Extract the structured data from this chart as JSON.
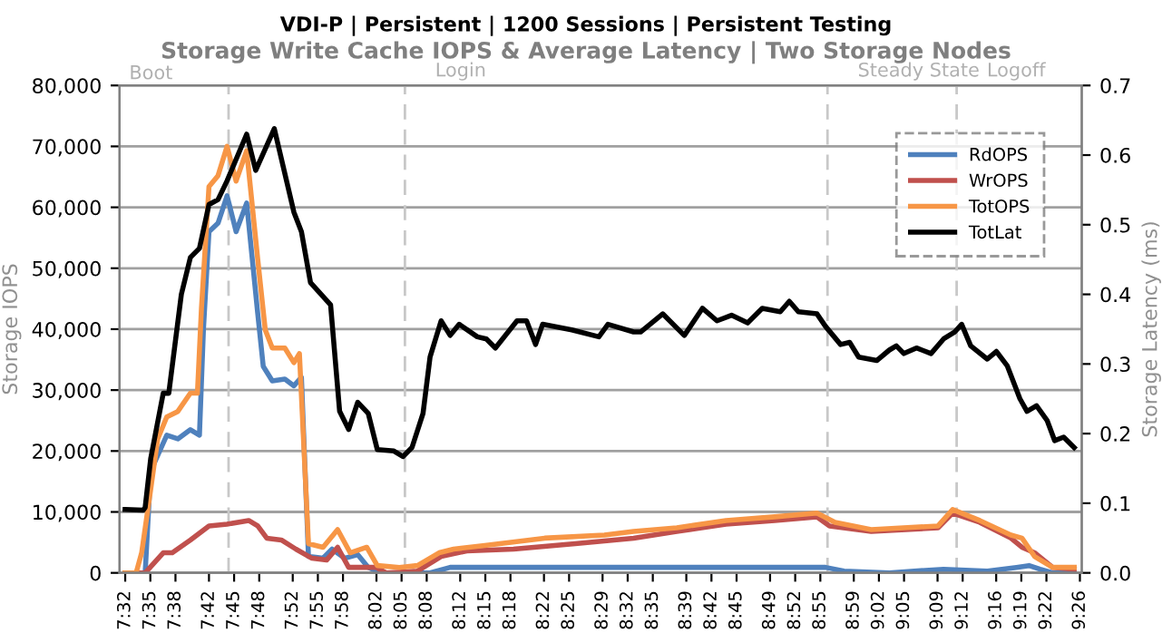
{
  "chart_data": {
    "type": "line",
    "title": "VDI-P | Persistent | 1200 Sessions | Persistent Testing",
    "subtitle": "Storage Write Cache IOPS & Average Latency | Two Storage Nodes",
    "ylabel": "Storage IOPS",
    "y2label": "Storage Latency (ms)",
    "xlim": [
      7.522,
      9.437
    ],
    "xticks": [
      {
        "value": 7.5333,
        "label": "7:32"
      },
      {
        "value": 7.5833,
        "label": "7:35"
      },
      {
        "value": 7.6333,
        "label": "7:38"
      },
      {
        "value": 7.7,
        "label": "7:42"
      },
      {
        "value": 7.75,
        "label": "7:45"
      },
      {
        "value": 7.8,
        "label": "7:48"
      },
      {
        "value": 7.8667,
        "label": "7:52"
      },
      {
        "value": 7.9167,
        "label": "7:55"
      },
      {
        "value": 7.9667,
        "label": "7:58"
      },
      {
        "value": 8.0333,
        "label": "8:02"
      },
      {
        "value": 8.0833,
        "label": "8:05"
      },
      {
        "value": 8.1333,
        "label": "8:08"
      },
      {
        "value": 8.2,
        "label": "8:12"
      },
      {
        "value": 8.25,
        "label": "8:15"
      },
      {
        "value": 8.3,
        "label": "8:18"
      },
      {
        "value": 8.3667,
        "label": "8:22"
      },
      {
        "value": 8.4167,
        "label": "8:25"
      },
      {
        "value": 8.4833,
        "label": "8:29"
      },
      {
        "value": 8.5333,
        "label": "8:32"
      },
      {
        "value": 8.5833,
        "label": "8:35"
      },
      {
        "value": 8.65,
        "label": "8:39"
      },
      {
        "value": 8.7,
        "label": "8:42"
      },
      {
        "value": 8.75,
        "label": "8:45"
      },
      {
        "value": 8.8167,
        "label": "8:49"
      },
      {
        "value": 8.8667,
        "label": "8:52"
      },
      {
        "value": 8.9167,
        "label": "8:55"
      },
      {
        "value": 8.9833,
        "label": "8:59"
      },
      {
        "value": 9.0333,
        "label": "9:02"
      },
      {
        "value": 9.0833,
        "label": "9:05"
      },
      {
        "value": 9.15,
        "label": "9:09"
      },
      {
        "value": 9.2,
        "label": "9:12"
      },
      {
        "value": 9.2667,
        "label": "9:16"
      },
      {
        "value": 9.3167,
        "label": "9:19"
      },
      {
        "value": 9.3667,
        "label": "9:22"
      },
      {
        "value": 9.4333,
        "label": "9:26"
      }
    ],
    "ylim": [
      0,
      80000
    ],
    "yticks": [
      {
        "value": 0,
        "label": "0"
      },
      {
        "value": 10000,
        "label": "10,000"
      },
      {
        "value": 20000,
        "label": "20,000"
      },
      {
        "value": 30000,
        "label": "30,000"
      },
      {
        "value": 40000,
        "label": "40,000"
      },
      {
        "value": 50000,
        "label": "50,000"
      },
      {
        "value": 60000,
        "label": "60,000"
      },
      {
        "value": 70000,
        "label": "70,000"
      },
      {
        "value": 80000,
        "label": "80,000"
      }
    ],
    "y2lim": [
      0,
      0.7
    ],
    "y2ticks": [
      {
        "value": 0,
        "label": "0.0"
      },
      {
        "value": 0.1,
        "label": "0.1"
      },
      {
        "value": 0.2,
        "label": "0.2"
      },
      {
        "value": 0.3,
        "label": "0.3"
      },
      {
        "value": 0.4,
        "label": "0.4"
      },
      {
        "value": 0.5,
        "label": "0.5"
      },
      {
        "value": 0.6,
        "label": "0.6"
      },
      {
        "value": 0.7,
        "label": "0.7"
      }
    ],
    "grid": "y",
    "legend": "top right",
    "marker": "none",
    "line_style": "solid",
    "annotations": [
      "Boot"
    ],
    "ref_lines": [
      {
        "axis": "x",
        "value": 7.739,
        "label": null
      },
      {
        "axis": "x",
        "value": 8.09,
        "label": "Login"
      },
      {
        "axis": "x",
        "value": 8.931,
        "label": "Steady State"
      },
      {
        "axis": "x",
        "value": 9.188,
        "label": "Logoff"
      }
    ],
    "series": [
      {
        "name": "RdOPS",
        "color": "#4f81bd",
        "x": [
          7.533,
          7.573,
          7.584,
          7.616,
          7.638,
          7.663,
          7.681,
          7.689,
          7.7,
          7.718,
          7.736,
          7.754,
          7.775,
          7.797,
          7.808,
          7.826,
          7.851,
          7.869,
          7.884,
          7.898,
          7.927,
          7.945,
          7.97,
          7.996,
          8.017,
          8.043,
          8.14,
          8.18,
          8.927,
          8.964,
          9.054,
          9.162,
          9.249,
          9.307,
          9.332,
          9.354,
          9.379,
          9.422
        ],
        "values": [
          0,
          0,
          16700,
          22600,
          22000,
          23500,
          22600,
          40000,
          56000,
          57400,
          61900,
          56000,
          60700,
          42600,
          33900,
          31500,
          31800,
          30700,
          32100,
          2700,
          2400,
          3900,
          2400,
          3000,
          900,
          0,
          0,
          900,
          900,
          300,
          0,
          600,
          300,
          900,
          1200,
          600,
          0,
          0
        ]
      },
      {
        "name": "WrOPS",
        "color": "#c0504d",
        "x": [
          7.533,
          7.573,
          7.609,
          7.627,
          7.663,
          7.7,
          7.736,
          7.779,
          7.797,
          7.815,
          7.844,
          7.873,
          7.905,
          7.934,
          7.956,
          7.978,
          8.032,
          8.053,
          8.115,
          8.162,
          8.213,
          8.306,
          8.429,
          8.545,
          8.631,
          8.729,
          8.826,
          8.91,
          8.935,
          9.018,
          9.151,
          9.18,
          9.234,
          9.296,
          9.318,
          9.343,
          9.379,
          9.422
        ],
        "values": [
          0,
          0,
          3300,
          3300,
          5400,
          7700,
          8000,
          8600,
          7700,
          5700,
          5400,
          3900,
          2400,
          2100,
          4200,
          900,
          900,
          0,
          300,
          2700,
          3600,
          3900,
          4800,
          5700,
          6800,
          8000,
          8600,
          9200,
          7700,
          6800,
          7400,
          9800,
          8300,
          5700,
          4200,
          3300,
          900,
          600
        ]
      },
      {
        "name": "TotOPS",
        "color": "#f79646",
        "x": [
          7.533,
          7.555,
          7.566,
          7.584,
          7.598,
          7.616,
          7.638,
          7.663,
          7.677,
          7.685,
          7.7,
          7.718,
          7.736,
          7.754,
          7.775,
          7.797,
          7.812,
          7.826,
          7.851,
          7.869,
          7.88,
          7.898,
          7.927,
          7.956,
          7.981,
          8.014,
          8.035,
          8.079,
          8.115,
          8.158,
          8.187,
          8.249,
          8.368,
          8.487,
          8.545,
          8.631,
          8.729,
          8.826,
          8.91,
          8.946,
          9.018,
          9.151,
          9.18,
          9.234,
          9.296,
          9.318,
          9.343,
          9.379,
          9.422
        ],
        "values": [
          0,
          0,
          3300,
          13700,
          22000,
          25600,
          26500,
          29500,
          29500,
          43400,
          63400,
          65200,
          70000,
          64300,
          69300,
          51500,
          39900,
          36900,
          36900,
          34500,
          36000,
          4800,
          4200,
          7100,
          3300,
          4200,
          1200,
          900,
          1200,
          3300,
          3900,
          4500,
          5700,
          6200,
          6800,
          7400,
          8600,
          9200,
          9800,
          8300,
          7100,
          7700,
          10400,
          8600,
          6200,
          5700,
          2700,
          900,
          900
        ]
      },
      {
        "name": "TotLat",
        "color": "#000000",
        "axis": "y2",
        "x": [
          7.533,
          7.569,
          7.573,
          7.584,
          7.609,
          7.62,
          7.645,
          7.663,
          7.681,
          7.7,
          7.718,
          7.736,
          7.775,
          7.793,
          7.83,
          7.869,
          7.884,
          7.902,
          7.942,
          7.96,
          7.978,
          7.996,
          8.017,
          8.035,
          8.068,
          8.086,
          8.104,
          8.126,
          8.14,
          8.162,
          8.18,
          8.198,
          8.234,
          8.252,
          8.27,
          8.313,
          8.332,
          8.35,
          8.364,
          8.422,
          8.476,
          8.494,
          8.545,
          8.559,
          8.603,
          8.646,
          8.682,
          8.711,
          8.74,
          8.772,
          8.801,
          8.837,
          8.855,
          8.873,
          8.91,
          8.927,
          8.957,
          8.975,
          8.993,
          9.029,
          9.054,
          9.068,
          9.083,
          9.108,
          9.137,
          9.162,
          9.184,
          9.198,
          9.216,
          9.249,
          9.267,
          9.289,
          9.314,
          9.328,
          9.347,
          9.368,
          9.383,
          9.401,
          9.422
        ],
        "values": [
          0.091,
          0.09,
          0.094,
          0.164,
          0.258,
          0.258,
          0.4,
          0.453,
          0.466,
          0.529,
          0.536,
          0.563,
          0.63,
          0.578,
          0.638,
          0.518,
          0.49,
          0.417,
          0.385,
          0.232,
          0.206,
          0.245,
          0.229,
          0.177,
          0.175,
          0.167,
          0.18,
          0.229,
          0.31,
          0.362,
          0.341,
          0.357,
          0.339,
          0.336,
          0.323,
          0.362,
          0.362,
          0.328,
          0.357,
          0.349,
          0.339,
          0.357,
          0.346,
          0.346,
          0.372,
          0.341,
          0.38,
          0.362,
          0.37,
          0.359,
          0.38,
          0.375,
          0.39,
          0.375,
          0.372,
          0.354,
          0.328,
          0.331,
          0.31,
          0.305,
          0.32,
          0.326,
          0.315,
          0.323,
          0.315,
          0.336,
          0.346,
          0.357,
          0.326,
          0.307,
          0.318,
          0.297,
          0.25,
          0.232,
          0.24,
          0.219,
          0.19,
          0.195,
          0.18
        ]
      }
    ]
  }
}
